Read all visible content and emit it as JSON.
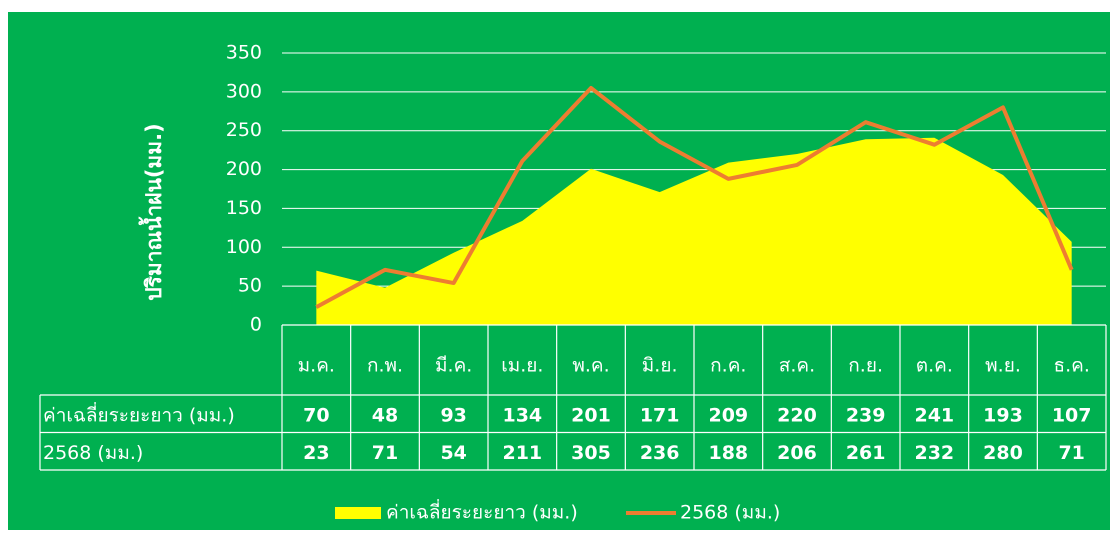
{
  "chart_data": {
    "type": "combo",
    "y_label": "ปริมาณน้ำฝน(มม.)",
    "categories": [
      "ม.ค.",
      "ก.พ.",
      "มี.ค.",
      "เม.ย.",
      "พ.ค.",
      "มิ.ย.",
      "ก.ค.",
      "ส.ค.",
      "ก.ย.",
      "ต.ค.",
      "พ.ย.",
      "ธ.ค."
    ],
    "series": [
      {
        "name": "ค่าเฉลี่ยระยะยาว (มม.)",
        "type": "area",
        "color": "#ffff00",
        "values": [
          70,
          48,
          93,
          134,
          201,
          171,
          209,
          220,
          239,
          241,
          193,
          107
        ]
      },
      {
        "name": "2568 (มม.)",
        "type": "line",
        "color": "#ed7d31",
        "values": [
          23,
          71,
          54,
          211,
          305,
          236,
          188,
          206,
          261,
          232,
          280,
          71
        ]
      }
    ],
    "ylim": [
      0,
      350
    ],
    "yticks": [
      0,
      50,
      100,
      150,
      200,
      250,
      300,
      350
    ],
    "grid": true,
    "background": "#00b050"
  }
}
